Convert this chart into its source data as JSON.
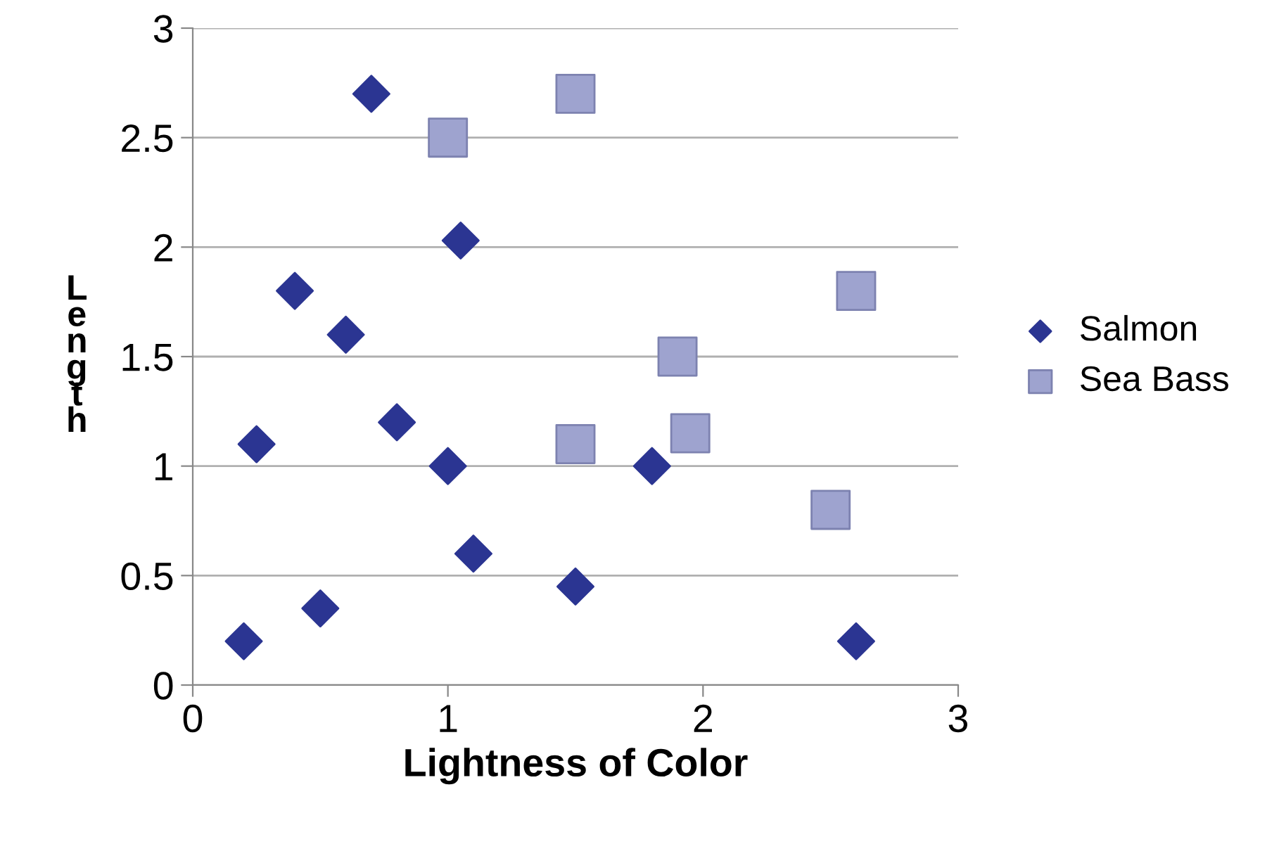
{
  "chart_data": {
    "type": "scatter",
    "xlabel": "Lightness of Color",
    "ylabel": "Length",
    "series": [
      {
        "name": "Salmon",
        "color": "#2b3592",
        "marker": "diamond",
        "x": [
          0.2,
          0.25,
          0.4,
          0.5,
          0.6,
          0.7,
          0.8,
          1.0,
          1.05,
          1.1,
          1.5,
          1.8,
          2.6
        ],
        "values": [
          0.2,
          1.1,
          1.8,
          0.35,
          1.6,
          2.7,
          1.2,
          1.0,
          2.03,
          0.6,
          0.45,
          1.0,
          0.2
        ]
      },
      {
        "name": "Sea Bass",
        "color": "#9ea3cf",
        "marker": "square",
        "x": [
          1.0,
          1.5,
          1.5,
          1.9,
          1.95,
          2.5,
          2.6
        ],
        "values": [
          2.5,
          2.7,
          1.1,
          1.5,
          1.15,
          0.8,
          1.8
        ]
      }
    ],
    "xlim": [
      0,
      3
    ],
    "ylim": [
      0,
      3
    ],
    "xticks": [
      0,
      1,
      2,
      3
    ],
    "yticks": [
      0,
      0.5,
      1,
      1.5,
      2,
      2.5,
      3
    ],
    "grid": "y",
    "legend": "right"
  }
}
